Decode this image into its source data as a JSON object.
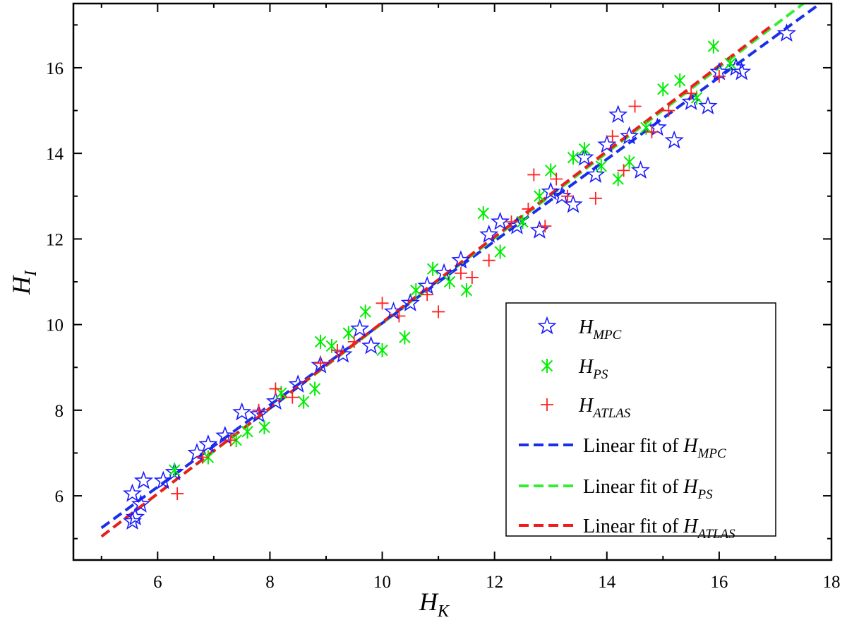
{
  "chart_data": {
    "type": "scatter",
    "title": "",
    "xlabel": {
      "main": "H",
      "sub": "K"
    },
    "ylabel": {
      "main": "H",
      "sub": "I"
    },
    "xlim": [
      4.5,
      18
    ],
    "ylim": [
      4.5,
      17.5
    ],
    "xticks": [
      6,
      8,
      10,
      12,
      14,
      16,
      18
    ],
    "yticks": [
      6,
      8,
      10,
      12,
      14,
      16
    ],
    "grid": false,
    "legend_position": "bottom-right",
    "series": [
      {
        "name": "H_MPC",
        "legend_main": "H",
        "legend_sub": "MPC",
        "marker": "star",
        "color": "#1a1aff",
        "points": [
          [
            5.55,
            6.05
          ],
          [
            5.6,
            5.5
          ],
          [
            5.75,
            6.35
          ],
          [
            5.7,
            5.8
          ],
          [
            5.55,
            5.4
          ],
          [
            6.1,
            6.35
          ],
          [
            6.3,
            6.55
          ],
          [
            6.7,
            7.0
          ],
          [
            6.9,
            7.2
          ],
          [
            7.2,
            7.4
          ],
          [
            7.5,
            7.95
          ],
          [
            7.8,
            7.9
          ],
          [
            8.1,
            8.2
          ],
          [
            8.5,
            8.6
          ],
          [
            8.9,
            9.05
          ],
          [
            9.3,
            9.3
          ],
          [
            9.6,
            9.9
          ],
          [
            9.8,
            9.5
          ],
          [
            10.2,
            10.3
          ],
          [
            10.5,
            10.5
          ],
          [
            10.8,
            10.9
          ],
          [
            11.1,
            11.2
          ],
          [
            11.4,
            11.5
          ],
          [
            11.9,
            12.1
          ],
          [
            12.1,
            12.4
          ],
          [
            12.4,
            12.3
          ],
          [
            12.8,
            12.2
          ],
          [
            13.0,
            13.1
          ],
          [
            13.2,
            13.0
          ],
          [
            13.4,
            12.8
          ],
          [
            13.6,
            13.9
          ],
          [
            13.8,
            13.5
          ],
          [
            14.0,
            14.2
          ],
          [
            14.2,
            14.9
          ],
          [
            14.4,
            14.4
          ],
          [
            14.6,
            13.6
          ],
          [
            14.9,
            14.6
          ],
          [
            15.2,
            14.3
          ],
          [
            15.5,
            15.2
          ],
          [
            15.8,
            15.1
          ],
          [
            16.0,
            15.9
          ],
          [
            16.3,
            16.0
          ],
          [
            16.4,
            15.9
          ],
          [
            17.2,
            16.8
          ]
        ]
      },
      {
        "name": "H_PS",
        "legend_main": "H",
        "legend_sub": "PS",
        "marker": "asterisk",
        "color": "#00ee00",
        "points": [
          [
            6.3,
            6.6
          ],
          [
            6.9,
            6.9
          ],
          [
            7.4,
            7.3
          ],
          [
            7.6,
            7.5
          ],
          [
            7.9,
            7.6
          ],
          [
            8.2,
            8.4
          ],
          [
            8.6,
            8.2
          ],
          [
            8.8,
            8.5
          ],
          [
            8.9,
            9.6
          ],
          [
            9.1,
            9.5
          ],
          [
            9.4,
            9.8
          ],
          [
            9.7,
            10.3
          ],
          [
            10.0,
            9.4
          ],
          [
            10.4,
            9.7
          ],
          [
            10.6,
            10.8
          ],
          [
            10.9,
            11.3
          ],
          [
            11.2,
            11.0
          ],
          [
            11.5,
            10.8
          ],
          [
            11.8,
            12.6
          ],
          [
            12.1,
            11.7
          ],
          [
            12.5,
            12.4
          ],
          [
            12.8,
            13.0
          ],
          [
            13.0,
            13.6
          ],
          [
            13.4,
            13.9
          ],
          [
            13.6,
            14.1
          ],
          [
            13.9,
            13.7
          ],
          [
            14.2,
            13.4
          ],
          [
            14.4,
            13.8
          ],
          [
            14.7,
            14.6
          ],
          [
            15.0,
            15.5
          ],
          [
            15.3,
            15.7
          ],
          [
            15.6,
            15.3
          ],
          [
            15.9,
            16.5
          ],
          [
            16.2,
            16.1
          ]
        ]
      },
      {
        "name": "H_ATLAS",
        "legend_main": "H",
        "legend_sub": "ATLAS",
        "marker": "plus",
        "color": "#ff2020",
        "points": [
          [
            6.35,
            6.05
          ],
          [
            6.8,
            6.9
          ],
          [
            7.3,
            7.3
          ],
          [
            7.8,
            8.0
          ],
          [
            8.1,
            8.5
          ],
          [
            8.4,
            8.3
          ],
          [
            8.9,
            9.1
          ],
          [
            9.2,
            9.4
          ],
          [
            9.5,
            9.6
          ],
          [
            10.0,
            10.5
          ],
          [
            10.3,
            10.2
          ],
          [
            10.8,
            10.7
          ],
          [
            11.0,
            10.3
          ],
          [
            11.4,
            11.2
          ],
          [
            11.6,
            11.1
          ],
          [
            11.9,
            11.5
          ],
          [
            12.3,
            12.4
          ],
          [
            12.6,
            12.7
          ],
          [
            12.7,
            13.5
          ],
          [
            12.9,
            12.3
          ],
          [
            13.1,
            13.4
          ],
          [
            13.3,
            13.0
          ],
          [
            13.8,
            12.95
          ],
          [
            14.1,
            14.4
          ],
          [
            14.3,
            13.6
          ],
          [
            14.5,
            15.1
          ],
          [
            14.8,
            14.5
          ],
          [
            15.1,
            15.0
          ],
          [
            15.5,
            15.4
          ],
          [
            16.0,
            15.8
          ]
        ]
      }
    ],
    "fits": [
      {
        "name": "Linear fit of H_MPC",
        "legend_prefix": "Linear fit of ",
        "legend_main": "H",
        "legend_sub": "MPC",
        "color": "#1a2fe8",
        "x_range": [
          5.0,
          17.8
        ],
        "y_range": [
          5.25,
          17.5
        ]
      },
      {
        "name": "Linear fit of H_PS",
        "legend_prefix": "Linear fit of ",
        "legend_main": "H",
        "legend_sub": "PS",
        "color": "#33ee33",
        "x_range": [
          5.0,
          17.5
        ],
        "y_range": [
          5.05,
          17.5
        ]
      },
      {
        "name": "Linear fit of H_ATLAS",
        "legend_prefix": "Linear fit of ",
        "legend_main": "H",
        "legend_sub": "ATLAS",
        "color": "#ee1c1c",
        "x_range": [
          5.0,
          16.9
        ],
        "y_range": [
          5.05,
          16.95
        ]
      }
    ]
  }
}
